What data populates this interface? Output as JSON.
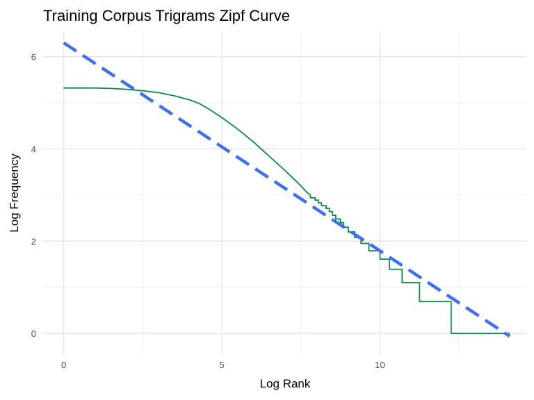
{
  "chart_data": {
    "type": "line",
    "title": "Training Corpus Trigrams Zipf Curve",
    "xlabel": "Log Rank",
    "ylabel": "Log Frequency",
    "xlim": [
      -0.65,
      14.65
    ],
    "ylim": [
      -0.45,
      6.55
    ],
    "x_ticks": [
      0,
      5,
      10
    ],
    "y_ticks": [
      0,
      2,
      4,
      6
    ],
    "x_minor_ticks": [
      2.5,
      7.5,
      12.5
    ],
    "y_minor_ticks": [
      1,
      3,
      5
    ],
    "grid": true,
    "legend": "none",
    "series": [
      {
        "color": "#0a8a45",
        "style": "solid",
        "points": [
          [
            0,
            5.32
          ],
          [
            1,
            5.32
          ],
          [
            1.5,
            5.31
          ],
          [
            2,
            5.29
          ],
          [
            2.5,
            5.26
          ],
          [
            3,
            5.22
          ],
          [
            3.5,
            5.15
          ],
          [
            4,
            5.06
          ],
          [
            4.3,
            4.98
          ],
          [
            4.6,
            4.86
          ],
          [
            5,
            4.68
          ],
          [
            5.5,
            4.43
          ],
          [
            6,
            4.15
          ],
          [
            6.5,
            3.84
          ],
          [
            7,
            3.53
          ],
          [
            7.5,
            3.2
          ],
          [
            7.7,
            3.05
          ],
          [
            7.8,
            3.0
          ],
          [
            7.8,
            2.94
          ],
          [
            7.95,
            2.94
          ],
          [
            7.95,
            2.89
          ],
          [
            8.05,
            2.89
          ],
          [
            8.05,
            2.83
          ],
          [
            8.15,
            2.83
          ],
          [
            8.15,
            2.77
          ],
          [
            8.3,
            2.77
          ],
          [
            8.3,
            2.71
          ],
          [
            8.4,
            2.71
          ],
          [
            8.4,
            2.64
          ],
          [
            8.5,
            2.64
          ],
          [
            8.5,
            2.56
          ],
          [
            8.6,
            2.56
          ],
          [
            8.6,
            2.48
          ],
          [
            8.75,
            2.48
          ],
          [
            8.75,
            2.4
          ],
          [
            8.85,
            2.4
          ],
          [
            8.85,
            2.3
          ],
          [
            9.0,
            2.3
          ],
          [
            9.0,
            2.2
          ],
          [
            9.2,
            2.2
          ],
          [
            9.2,
            2.08
          ],
          [
            9.4,
            2.08
          ],
          [
            9.4,
            1.95
          ],
          [
            9.65,
            1.95
          ],
          [
            9.65,
            1.79
          ],
          [
            10.0,
            1.79
          ],
          [
            10.0,
            1.61
          ],
          [
            10.3,
            1.61
          ],
          [
            10.3,
            1.39
          ],
          [
            10.7,
            1.39
          ],
          [
            10.7,
            1.1
          ],
          [
            11.25,
            1.1
          ],
          [
            11.25,
            0.69
          ],
          [
            12.25,
            0.69
          ],
          [
            12.25,
            0.0
          ],
          [
            14.1,
            0.0
          ]
        ]
      },
      {
        "color": "#3f6ff0",
        "style": "dashed",
        "points": [
          [
            0,
            6.3
          ],
          [
            14.1,
            -0.06
          ]
        ]
      }
    ]
  }
}
